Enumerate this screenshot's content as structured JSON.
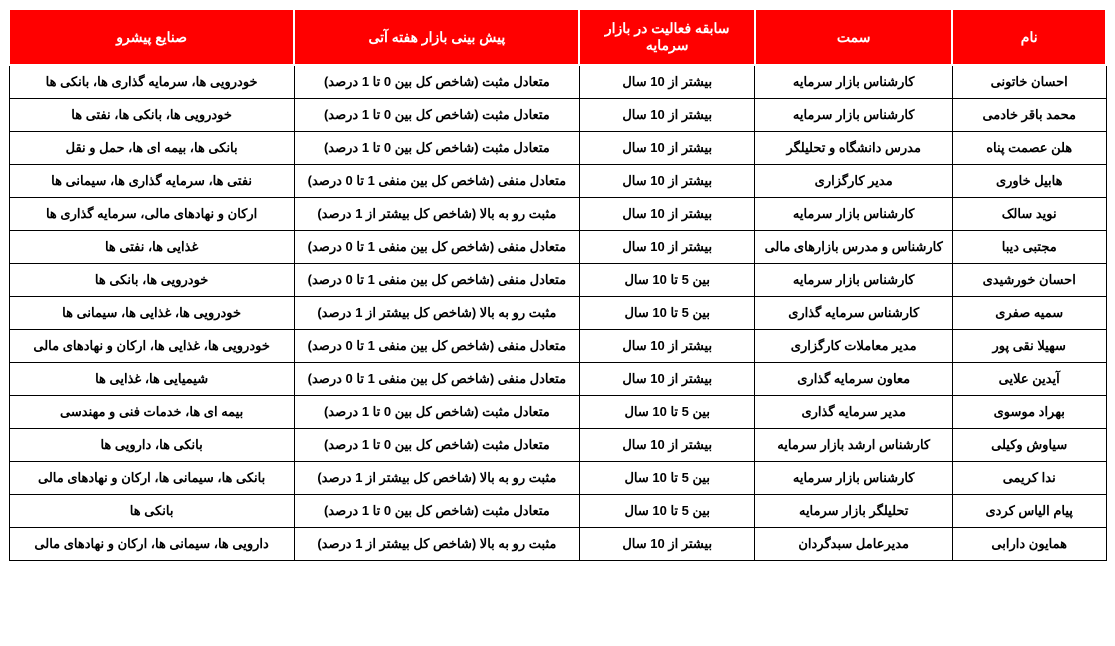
{
  "table": {
    "header_bg": "#ff0000",
    "header_fg": "#ffffff",
    "cell_border": "#000000",
    "cell_bg": "#ffffff",
    "cell_fg": "#000000",
    "font_family": "Tahoma",
    "header_fontsize": 14,
    "cell_fontsize": 13,
    "columns": [
      {
        "key": "name",
        "label": "نام",
        "width": "14%"
      },
      {
        "key": "role",
        "label": "سمت",
        "width": "18%"
      },
      {
        "key": "experience",
        "label": "سابقه فعالیت در بازار سرمایه",
        "width": "16%"
      },
      {
        "key": "forecast",
        "label": "پیش بینی بازار هفته آتی",
        "width": "26%"
      },
      {
        "key": "industries",
        "label": "صنایع پیشرو",
        "width": "26%"
      }
    ],
    "rows": [
      {
        "name": "احسان خاتونی",
        "role": "کارشناس بازار سرمایه",
        "experience": "بیشتر از 10 سال",
        "forecast": "متعادل مثبت (شاخص کل بین 0 تا 1 درصد)",
        "industries": "خودرویی ها، سرمایه گذاری ها، بانکی ها"
      },
      {
        "name": "محمد باقر خادمی",
        "role": "کارشناس بازار سرمایه",
        "experience": "بیشتر از 10 سال",
        "forecast": "متعادل مثبت (شاخص کل بین 0 تا 1 درصد)",
        "industries": "خودرویی ها، بانکی ها، نفتی ها"
      },
      {
        "name": "هلن عصمت پناه",
        "role": "مدرس دانشگاه و تحلیلگر",
        "experience": "بیشتر از 10 سال",
        "forecast": "متعادل مثبت (شاخص کل بین 0 تا 1 درصد)",
        "industries": "بانکی ها، بیمه ای ها، حمل و نقل"
      },
      {
        "name": "هابیل خاوری",
        "role": "مدیر کارگزاری",
        "experience": "بیشتر از 10 سال",
        "forecast": "متعادل منفی (شاخص کل بین منفی 1 تا 0 درصد)",
        "industries": "نفتی ها، سرمایه گذاری ها، سیمانی ها"
      },
      {
        "name": "نوید سالک",
        "role": "کارشناس بازار سرمایه",
        "experience": "بیشتر از 10 سال",
        "forecast": "مثبت رو به بالا (شاخص کل بیشتر از 1 درصد)",
        "industries": "ارکان و نهادهای مالی، سرمایه گذاری ها"
      },
      {
        "name": "مجتبی دیبا",
        "role": "کارشناس و مدرس بازارهای مالی",
        "experience": "بیشتر از 10 سال",
        "forecast": "متعادل منفی (شاخص کل بین منفی 1 تا 0 درصد)",
        "industries": "غذایی ها، نفتی ها"
      },
      {
        "name": "احسان خورشیدی",
        "role": "کارشناس بازار سرمایه",
        "experience": "بین 5 تا 10 سال",
        "forecast": "متعادل منفی (شاخص کل بین منفی 1 تا 0 درصد)",
        "industries": "خودرویی ها، بانکی ها"
      },
      {
        "name": "سمیه صفری",
        "role": "کارشناس سرمایه گذاری",
        "experience": "بین 5 تا 10 سال",
        "forecast": "مثبت رو به بالا (شاخص کل بیشتر از 1 درصد)",
        "industries": "خودرویی ها، غذایی ها،  سیمانی ها"
      },
      {
        "name": "سهیلا نقی پور",
        "role": "مدیر معاملات کارگزاری",
        "experience": "بیشتر از 10 سال",
        "forecast": "متعادل منفی (شاخص کل بین منفی 1 تا 0 درصد)",
        "industries": "خودرویی ها، غذایی ها، ارکان و نهادهای مالی"
      },
      {
        "name": "آیدین علایی",
        "role": "معاون سرمایه گذاری",
        "experience": "بیشتر از 10 سال",
        "forecast": "متعادل منفی (شاخص کل بین منفی 1 تا 0 درصد)",
        "industries": "شیمیایی ها، غذایی ها"
      },
      {
        "name": "بهراد موسوی",
        "role": "مدیر سرمایه گذاری",
        "experience": "بین 5 تا 10 سال",
        "forecast": "متعادل مثبت (شاخص کل بین 0 تا 1 درصد)",
        "industries": "بیمه ای ها، خدمات فنی و مهندسی"
      },
      {
        "name": "سیاوش وکیلی",
        "role": "کارشناس ارشد بازار سرمایه",
        "experience": "بیشتر از 10 سال",
        "forecast": "متعادل مثبت (شاخص کل بین 0 تا 1 درصد)",
        "industries": "بانکی ها، دارویی ها"
      },
      {
        "name": "ندا کریمی",
        "role": "کارشناس بازار سرمایه",
        "experience": "بین 5 تا 10 سال",
        "forecast": "مثبت رو به بالا (شاخص کل بیشتر از 1 درصد)",
        "industries": "بانکی ها، سیمانی ها، ارکان و نهادهای مالی"
      },
      {
        "name": "پیام الیاس کردی",
        "role": "تحلیلگر بازار سرمایه",
        "experience": "بین 5 تا 10 سال",
        "forecast": "متعادل مثبت (شاخص کل بین 0 تا 1 درصد)",
        "industries": "بانکی ها"
      },
      {
        "name": "همایون دارابی",
        "role": "مدیرعامل سبدگردان",
        "experience": "بیشتر از 10 سال",
        "forecast": "مثبت رو به بالا (شاخص کل بیشتر از 1 درصد)",
        "industries": "دارویی ها، سیمانی ها، ارکان و نهادهای مالی"
      }
    ]
  }
}
